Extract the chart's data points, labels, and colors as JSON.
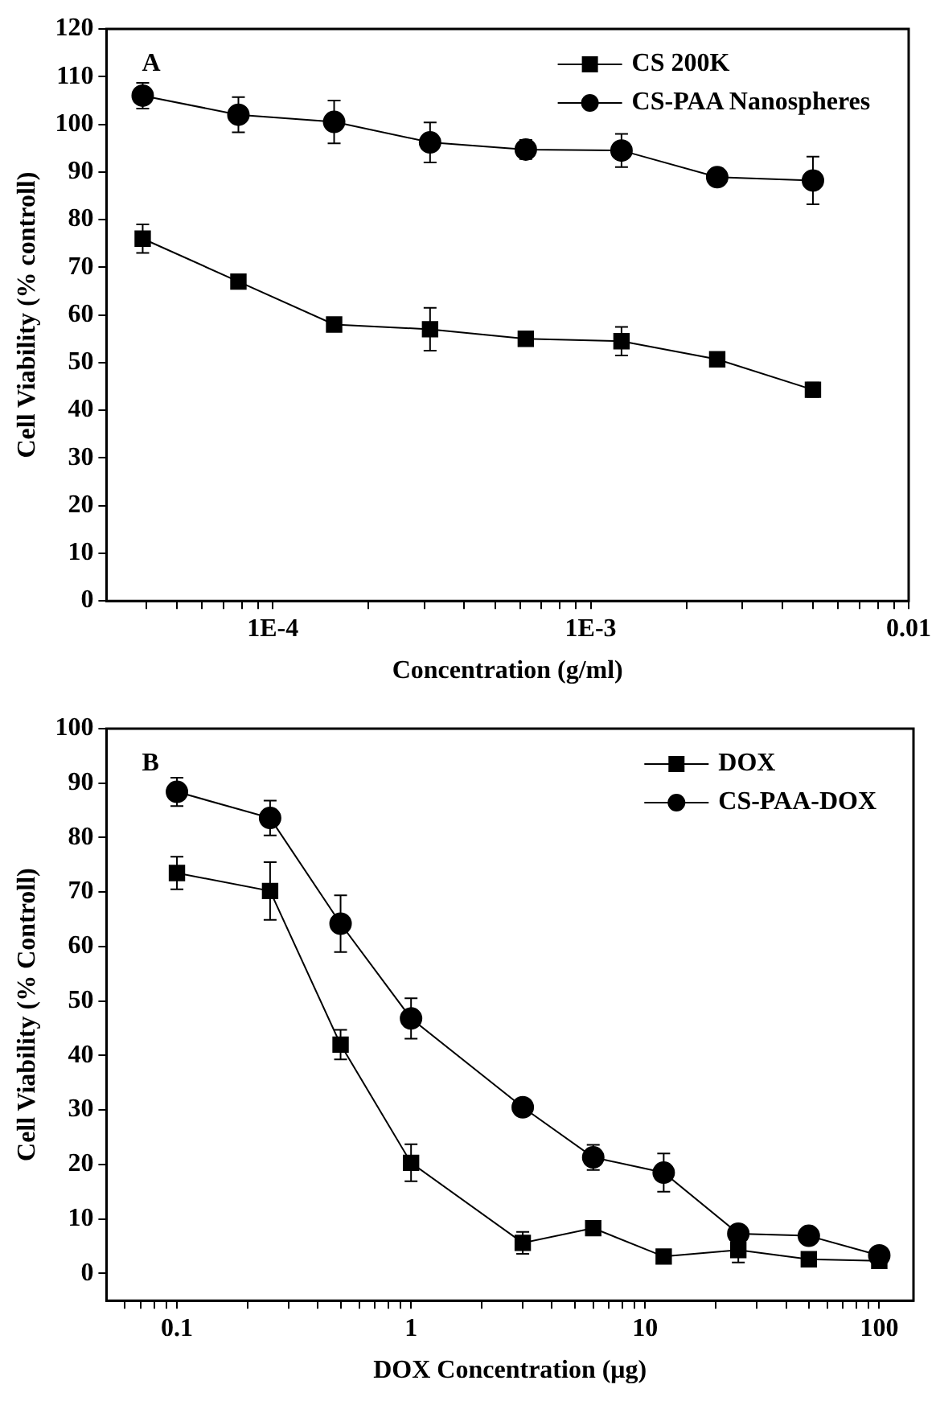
{
  "chart_data": [
    {
      "type": "line",
      "xlabel": "Concentration (g/ml)",
      "ylabel": "Cell Viability (% controll)",
      "annotations": [
        "A"
      ],
      "log": "x",
      "legend": "top right",
      "grid": false,
      "x": [
        3.9e-05,
        7.8e-05,
        0.000156,
        0.0003125,
        0.000625,
        0.00125,
        0.0025,
        0.005
      ],
      "xlim": [
        3e-05,
        0.01
      ],
      "ylim": [
        0,
        120
      ],
      "xticks": [
        {
          "value": 4e-05,
          "label": null
        },
        {
          "value": 5e-05,
          "label": null
        },
        {
          "value": 6e-05,
          "label": null
        },
        {
          "value": 7e-05,
          "label": null
        },
        {
          "value": 8e-05,
          "label": null
        },
        {
          "value": 9e-05,
          "label": null
        },
        {
          "value": 0.0001,
          "label": "1E-4"
        },
        {
          "value": 0.0002,
          "label": null
        },
        {
          "value": 0.0003,
          "label": null
        },
        {
          "value": 0.0004,
          "label": null
        },
        {
          "value": 0.0005,
          "label": null
        },
        {
          "value": 0.0006,
          "label": null
        },
        {
          "value": 0.0007,
          "label": null
        },
        {
          "value": 0.0008,
          "label": null
        },
        {
          "value": 0.0009,
          "label": null
        },
        {
          "value": 0.001,
          "label": "1E-3"
        },
        {
          "value": 0.002,
          "label": null
        },
        {
          "value": 0.003,
          "label": null
        },
        {
          "value": 0.004,
          "label": null
        },
        {
          "value": 0.005,
          "label": null
        },
        {
          "value": 0.006,
          "label": null
        },
        {
          "value": 0.007,
          "label": null
        },
        {
          "value": 0.008,
          "label": null
        },
        {
          "value": 0.009,
          "label": null
        },
        0.01
      ],
      "yticks": [
        0,
        10,
        20,
        30,
        40,
        50,
        60,
        70,
        80,
        90,
        100,
        110,
        120
      ],
      "series": [
        {
          "name": "CS 200K",
          "color": "#000000",
          "marker": "square",
          "values": [
            76,
            67,
            58,
            57,
            55,
            54.5,
            50.7,
            44.3
          ],
          "errors": [
            3,
            null,
            null,
            4.5,
            null,
            3,
            null,
            1.5
          ]
        },
        {
          "name": "CS-PAA Nanospheres",
          "color": "#000000",
          "marker": "circle",
          "values": [
            106,
            102,
            100.5,
            96.2,
            94.7,
            94.5,
            88.9,
            88.2
          ],
          "errors": [
            2.7,
            3.7,
            4.5,
            4.2,
            2,
            3.5,
            0.5,
            5
          ]
        }
      ]
    },
    {
      "type": "line",
      "xlabel": "DOX Concentration (μg)",
      "ylabel": "Cell Viability (% Controll)",
      "annotations": [
        "B"
      ],
      "log": "x",
      "legend": "top right",
      "grid": false,
      "x": [
        0.1,
        0.25,
        0.5,
        1,
        3,
        6,
        12,
        25,
        50,
        100
      ],
      "xlim": [
        0.05,
        140
      ],
      "ylim": [
        -5,
        100
      ],
      "xticks": [
        {
          "value": 0.06,
          "label": null
        },
        {
          "value": 0.07,
          "label": null
        },
        {
          "value": 0.08,
          "label": null
        },
        {
          "value": 0.09,
          "label": null
        },
        0.1,
        {
          "value": 0.2,
          "label": null
        },
        {
          "value": 0.3,
          "label": null
        },
        {
          "value": 0.4,
          "label": null
        },
        {
          "value": 0.5,
          "label": null
        },
        {
          "value": 0.6,
          "label": null
        },
        {
          "value": 0.7,
          "label": null
        },
        {
          "value": 0.8,
          "label": null
        },
        {
          "value": 0.9,
          "label": null
        },
        1,
        {
          "value": 2,
          "label": null
        },
        {
          "value": 3,
          "label": null
        },
        {
          "value": 4,
          "label": null
        },
        {
          "value": 5,
          "label": null
        },
        {
          "value": 6,
          "label": null
        },
        {
          "value": 7,
          "label": null
        },
        {
          "value": 8,
          "label": null
        },
        {
          "value": 9,
          "label": null
        },
        10,
        {
          "value": 20,
          "label": null
        },
        {
          "value": 30,
          "label": null
        },
        {
          "value": 40,
          "label": null
        },
        {
          "value": 50,
          "label": null
        },
        {
          "value": 60,
          "label": null
        },
        {
          "value": 70,
          "label": null
        },
        {
          "value": 80,
          "label": null
        },
        {
          "value": 90,
          "label": null
        },
        100
      ],
      "yticks": [
        0,
        10,
        20,
        30,
        40,
        50,
        60,
        70,
        80,
        90,
        100
      ],
      "series": [
        {
          "name": "DOX",
          "color": "#000000",
          "marker": "square",
          "values": [
            73.5,
            70.2,
            42,
            20.3,
            5.6,
            8.3,
            3.1,
            4.3,
            2.6,
            2.3
          ],
          "errors": [
            3,
            5.3,
            2.7,
            3.4,
            2,
            null,
            null,
            2.3,
            null,
            null
          ]
        },
        {
          "name": "CS-PAA-DOX",
          "color": "#000000",
          "marker": "circle",
          "values": [
            88.4,
            83.6,
            64.2,
            46.8,
            30.5,
            21.3,
            18.5,
            7.3,
            6.9,
            3.3
          ],
          "errors": [
            2.6,
            3.2,
            5.2,
            3.7,
            null,
            2.3,
            3.5,
            null,
            null,
            null
          ]
        }
      ]
    }
  ]
}
